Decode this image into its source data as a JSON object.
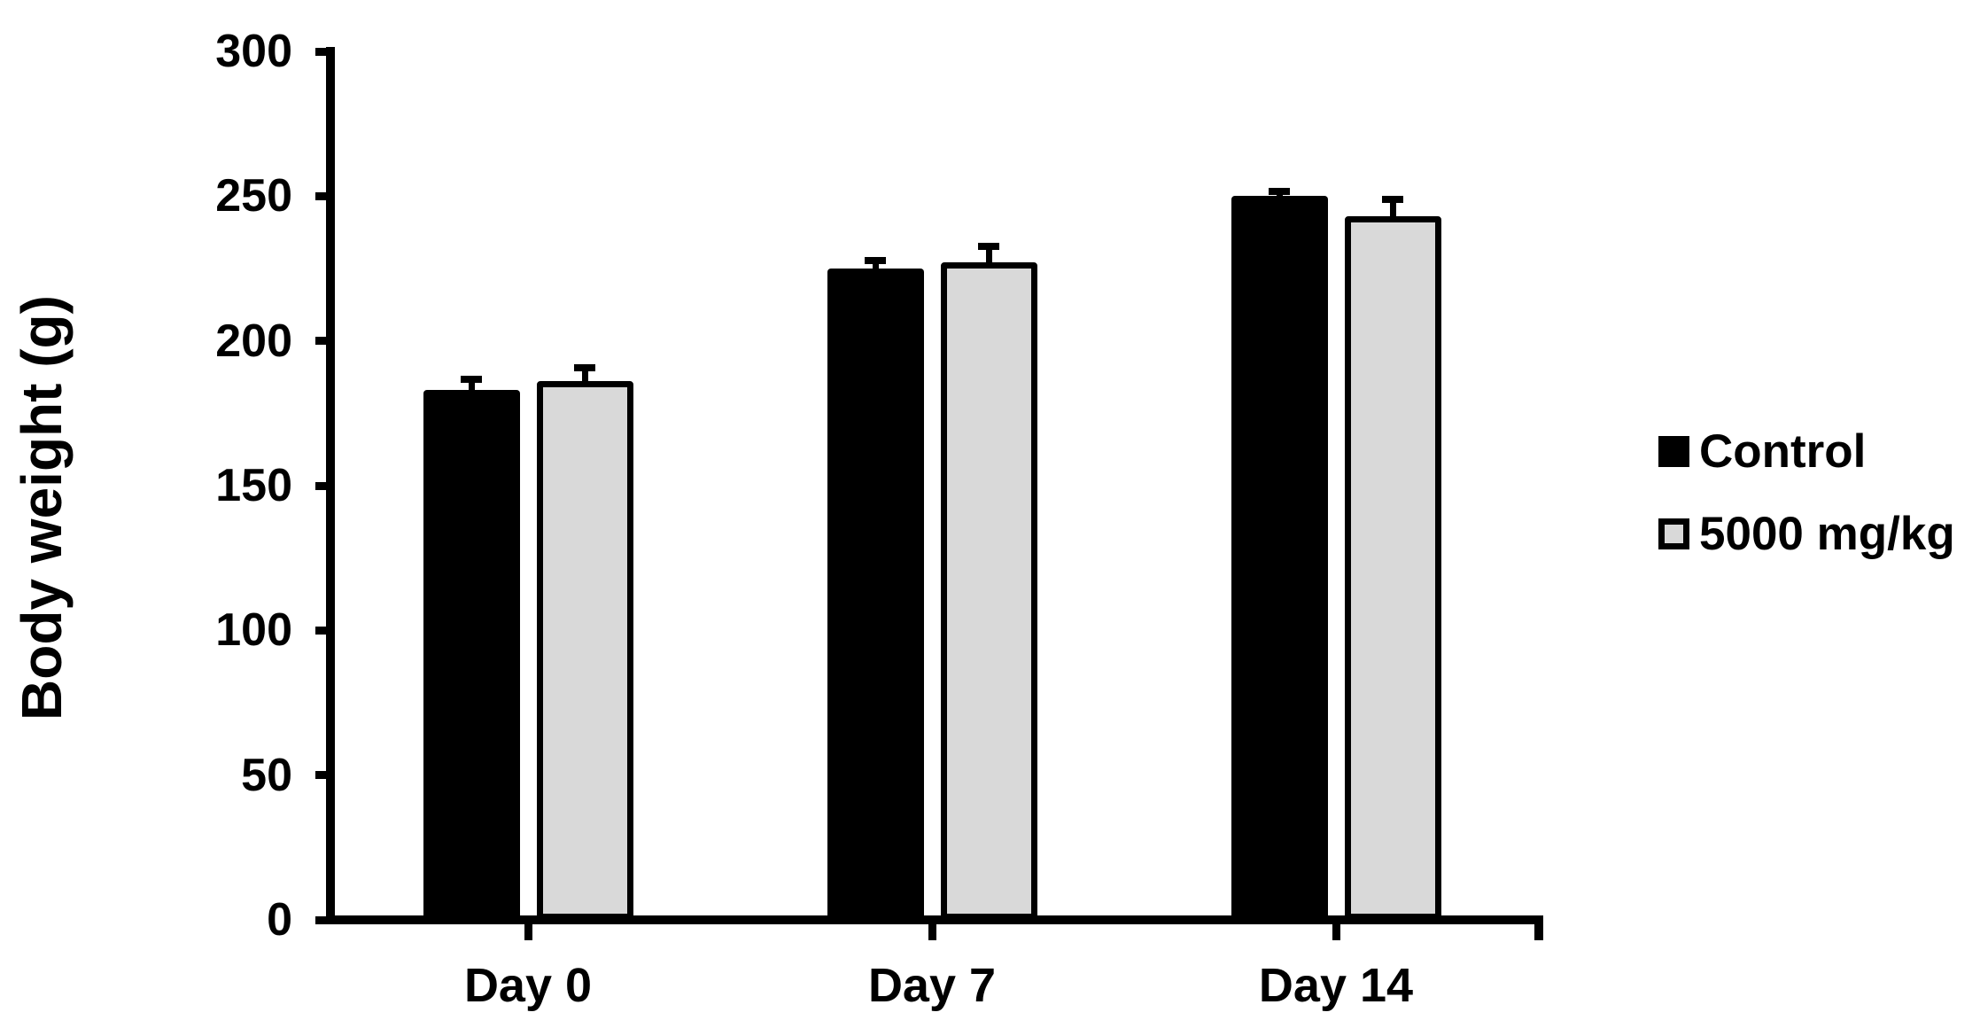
{
  "chart_data": {
    "type": "bar",
    "title": "",
    "ylabel": "Body weight (g)",
    "xlabel": "",
    "categories": [
      "Day 0",
      "Day 7",
      "Day 14"
    ],
    "series": [
      {
        "name": "Control",
        "fill": "#000000",
        "border": "#000000",
        "values": [
          183,
          225,
          250
        ],
        "errors_upper": [
          5,
          4,
          3
        ]
      },
      {
        "name": "5000 mg/kg",
        "fill": "#d9d9d9",
        "border": "#000000",
        "values": [
          186,
          227,
          243
        ],
        "errors_upper": [
          6,
          7,
          7
        ]
      }
    ],
    "ylim": [
      0,
      300
    ],
    "yticks": [
      0,
      50,
      100,
      150,
      200,
      250,
      300
    ],
    "grid": false,
    "legend_position": "right",
    "error_bar_style": "upper-only-with-cap",
    "colors": {
      "background": "#ffffff",
      "axis": "#000000",
      "text": "#000000"
    }
  }
}
